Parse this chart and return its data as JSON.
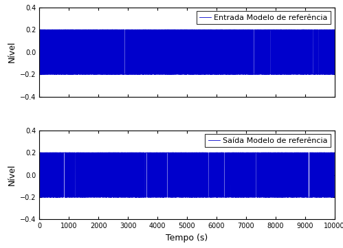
{
  "title_top": "Entrada Modelo de referência",
  "title_bottom": "Saída Modelo de referência",
  "xlabel": "Tempo (s)",
  "ylabel": "Nível",
  "xlim": [
    0,
    10000
  ],
  "ylim": [
    -0.4,
    0.4
  ],
  "xticks": [
    0,
    1000,
    2000,
    3000,
    4000,
    5000,
    6000,
    7000,
    8000,
    9000,
    10000
  ],
  "yticks": [
    -0.4,
    -0.2,
    0,
    0.2,
    0.4
  ],
  "line_color": "#0000cc",
  "n_points": 10000,
  "amplitude": 0.2,
  "background_color": "#ffffff",
  "legend_fontsize": 8,
  "tick_fontsize": 7,
  "label_fontsize": 9,
  "seed_input": 42,
  "seed_output": 99,
  "hold_min_input": 1,
  "hold_max_input": 5,
  "hold_min_output": 1,
  "hold_max_output": 6
}
